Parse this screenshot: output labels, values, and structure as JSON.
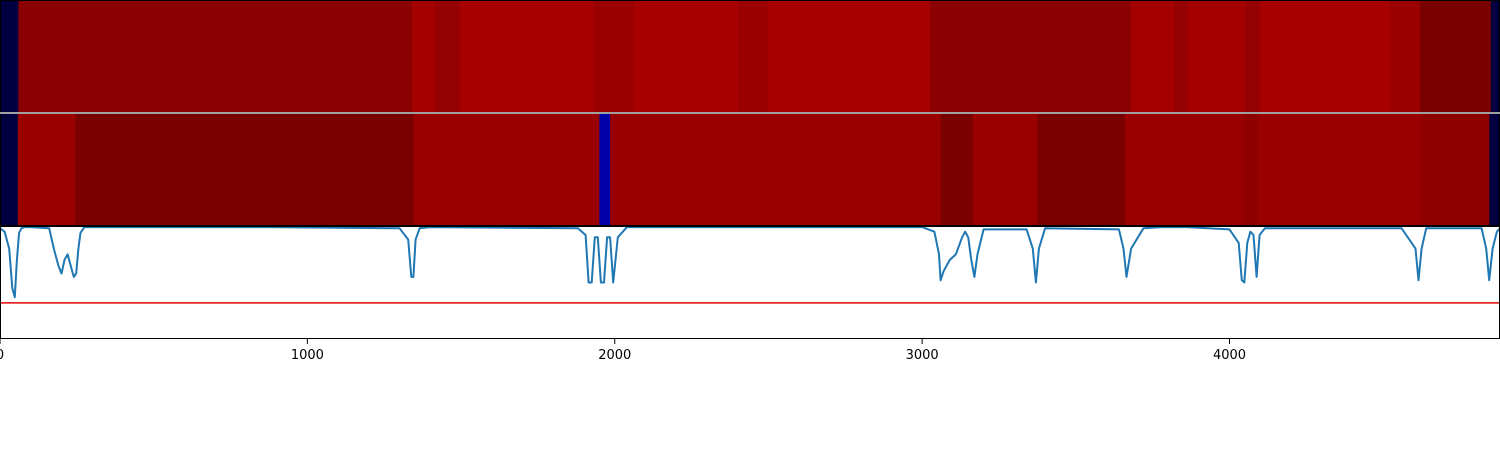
{
  "chart_data": [
    {
      "type": "heatmap",
      "xlim": [
        0,
        4880
      ],
      "colors": {
        "dark_navy": "#000040",
        "blue": "#0000a8",
        "dark_red": "#7a0000",
        "red_mid": "#8b0000",
        "red": "#9b0000",
        "red_bright": "#a80000"
      },
      "segments": [
        {
          "start": 0,
          "end": 60,
          "color": "#000040"
        },
        {
          "start": 60,
          "end": 1340,
          "color": "#8b0000"
        },
        {
          "start": 1340,
          "end": 1415,
          "color": "#a50000"
        },
        {
          "start": 1415,
          "end": 1495,
          "color": "#950000"
        },
        {
          "start": 1495,
          "end": 1930,
          "color": "#a80000"
        },
        {
          "start": 1930,
          "end": 2065,
          "color": "#9a0000"
        },
        {
          "start": 2065,
          "end": 2400,
          "color": "#a80000"
        },
        {
          "start": 2400,
          "end": 2500,
          "color": "#9a0000"
        },
        {
          "start": 2500,
          "end": 3025,
          "color": "#a80000"
        },
        {
          "start": 3025,
          "end": 3680,
          "color": "#8b0000"
        },
        {
          "start": 3680,
          "end": 3820,
          "color": "#a50000"
        },
        {
          "start": 3820,
          "end": 3865,
          "color": "#950000"
        },
        {
          "start": 3865,
          "end": 4050,
          "color": "#a50000"
        },
        {
          "start": 4050,
          "end": 4100,
          "color": "#950000"
        },
        {
          "start": 4100,
          "end": 4520,
          "color": "#a80000"
        },
        {
          "start": 4520,
          "end": 4620,
          "color": "#9a0000"
        },
        {
          "start": 4620,
          "end": 4850,
          "color": "#7a0000"
        },
        {
          "start": 4850,
          "end": 4880,
          "color": "#000040"
        }
      ]
    },
    {
      "type": "heatmap",
      "xlim": [
        0,
        4880
      ],
      "segments": [
        {
          "start": 0,
          "end": 58,
          "color": "#000040"
        },
        {
          "start": 58,
          "end": 245,
          "color": "#9b0000"
        },
        {
          "start": 245,
          "end": 1345,
          "color": "#7a0000"
        },
        {
          "start": 1345,
          "end": 1950,
          "color": "#9b0000"
        },
        {
          "start": 1950,
          "end": 1985,
          "color": "#0000a8"
        },
        {
          "start": 1985,
          "end": 3060,
          "color": "#9b0000"
        },
        {
          "start": 3060,
          "end": 3165,
          "color": "#7a0000"
        },
        {
          "start": 3165,
          "end": 3375,
          "color": "#9b0000"
        },
        {
          "start": 3375,
          "end": 3660,
          "color": "#7a0000"
        },
        {
          "start": 3660,
          "end": 4045,
          "color": "#9b0000"
        },
        {
          "start": 4045,
          "end": 4095,
          "color": "#8f0000"
        },
        {
          "start": 4095,
          "end": 4620,
          "color": "#9b0000"
        },
        {
          "start": 4620,
          "end": 4845,
          "color": "#8f0000"
        },
        {
          "start": 4845,
          "end": 4880,
          "color": "#000040"
        }
      ]
    },
    {
      "type": "line",
      "xlim": [
        0,
        4880
      ],
      "ylim": [
        -1.0,
        0.0
      ],
      "xticks": [
        0,
        1000,
        2000,
        3000,
        4000
      ],
      "xtick_labels": [
        "0",
        "1000",
        "2000",
        "3000",
        "4000"
      ],
      "threshold": {
        "y": -0.68,
        "color": "#e00000"
      },
      "series": [
        {
          "color": "#1f77b4",
          "x": [
            0,
            15,
            30,
            40,
            48,
            55,
            62,
            70,
            80,
            100,
            160,
            175,
            190,
            200,
            210,
            220,
            230,
            240,
            248,
            255,
            262,
            275,
            300,
            700,
            800,
            870,
            1300,
            1328,
            1338,
            1345,
            1352,
            1365,
            1400,
            1880,
            1905,
            1915,
            1925,
            1935,
            1945,
            1955,
            1965,
            1975,
            1985,
            1995,
            2010,
            2040,
            2360,
            2420,
            2500,
            3000,
            3040,
            3055,
            3060,
            3070,
            3090,
            3110,
            3130,
            3140,
            3150,
            3160,
            3170,
            3180,
            3200,
            3340,
            3360,
            3370,
            3380,
            3400,
            3640,
            3655,
            3665,
            3680,
            3720,
            3780,
            3860,
            4000,
            4030,
            4040,
            4048,
            4058,
            4068,
            4078,
            4088,
            4098,
            4115,
            4560,
            4605,
            4615,
            4625,
            4640,
            4820,
            4835,
            4845,
            4856,
            4870,
            4880
          ],
          "y": [
            -0.02,
            -0.05,
            -0.2,
            -0.55,
            -0.63,
            -0.3,
            -0.06,
            -0.02,
            -0.01,
            -0.01,
            -0.02,
            -0.2,
            -0.35,
            -0.42,
            -0.3,
            -0.25,
            -0.35,
            -0.45,
            -0.42,
            -0.2,
            -0.06,
            -0.01,
            -0.01,
            -0.01,
            -0.01,
            -0.01,
            -0.02,
            -0.12,
            -0.45,
            -0.45,
            -0.12,
            -0.02,
            -0.01,
            -0.02,
            -0.08,
            -0.5,
            -0.5,
            -0.1,
            -0.1,
            -0.5,
            -0.5,
            -0.1,
            -0.1,
            -0.5,
            -0.1,
            -0.01,
            -0.01,
            -0.01,
            -0.01,
            -0.01,
            -0.05,
            -0.25,
            -0.48,
            -0.4,
            -0.3,
            -0.25,
            -0.1,
            -0.05,
            -0.1,
            -0.3,
            -0.45,
            -0.25,
            -0.03,
            -0.03,
            -0.2,
            -0.5,
            -0.2,
            -0.02,
            -0.03,
            -0.2,
            -0.45,
            -0.2,
            -0.02,
            -0.01,
            -0.01,
            -0.03,
            -0.15,
            -0.48,
            -0.5,
            -0.15,
            -0.05,
            -0.08,
            -0.45,
            -0.08,
            -0.02,
            -0.02,
            -0.2,
            -0.48,
            -0.2,
            -0.02,
            -0.02,
            -0.2,
            -0.48,
            -0.2,
            -0.05,
            -0.02
          ]
        }
      ]
    }
  ]
}
